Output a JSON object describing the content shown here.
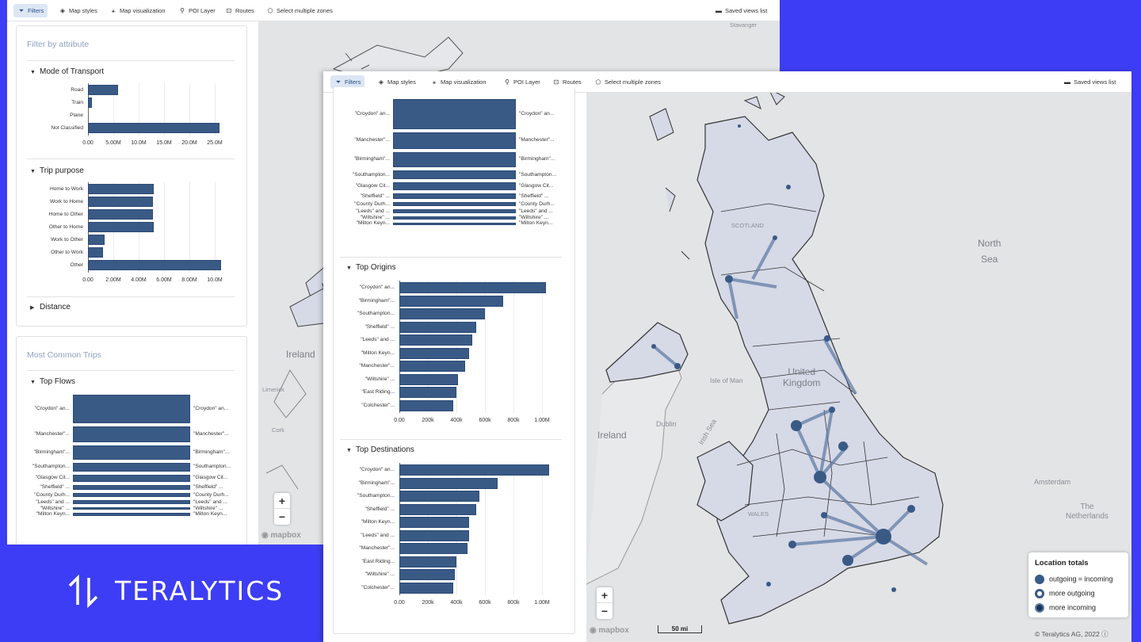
{
  "toolbar": {
    "filters": "Filters",
    "map_styles": "Map styles",
    "map_visualization": "Map visualization",
    "poi_layer": "POI Layer",
    "routes": "Routes",
    "select_multiple_zones": "Select multiple zones",
    "saved_views_list": "Saved views list"
  },
  "back_window": {
    "filter_title": "Filter by attribute",
    "mode_of_transport": {
      "title": "Mode of Transport",
      "categories": [
        "Road",
        "Train",
        "Plane",
        "Not Classified"
      ],
      "values": [
        6.0,
        0.8,
        0.0,
        26.0
      ],
      "ticks": [
        "0.00",
        "5.00M",
        "10.0M",
        "15.0M",
        "20.0M",
        "25.0M"
      ]
    },
    "trip_purpose": {
      "title": "Trip purpose",
      "categories": [
        "Home to Work",
        "Work to Home",
        "Home to Other",
        "Other to Home",
        "Work to Other",
        "Other to Work",
        "Other"
      ],
      "values": [
        5.2,
        5.1,
        5.1,
        5.2,
        1.3,
        1.2,
        10.5
      ],
      "ticks": [
        "0.00",
        "2.00M",
        "4.00M",
        "6.00M",
        "8.00M",
        "10.0M"
      ]
    },
    "distance": {
      "title": "Distance"
    },
    "common_trips_title": "Most Common Trips",
    "top_flows": {
      "title": "Top Flows",
      "origins": [
        "\"Croydon\" an...",
        "\"Manchester\"...",
        "\"Birmingham\"...",
        "\"Southampton...",
        "\"Glasgow Cit...",
        "\"Sheffield\" ...",
        "\"County Durh...",
        "\"Leeds\" and ...",
        "\"Wiltshire\" ...",
        "\"Milton Keyn..."
      ],
      "destinations": [
        "\"Croydon\" an...",
        "\"Manchester\"...",
        "\"Birmingham\"...",
        "\"Southampton...",
        "\"Glasgow Cit...",
        "\"Sheffield\" ...",
        "\"County Durh...",
        "\"Leeds\" and ...",
        "\"Wiltshire\" ...",
        "\"Milton Keyn..."
      ],
      "values": [
        100,
        55,
        50,
        30,
        26,
        18,
        14,
        12,
        10,
        9
      ]
    },
    "map_labels": {
      "ireland": "Ireland",
      "limerick": "Limerick",
      "cork": "Cork",
      "stavanger": "Stavanger"
    },
    "mapbox": "mapbox"
  },
  "front_window": {
    "top_flows": {
      "origins": [
        "\"Croydon\" an...",
        "\"Manchester\"...",
        "\"Birmingham\"...",
        "\"Southampton...",
        "\"Glasgow Cit...",
        "\"Sheffield\" ...",
        "\"County Durh...",
        "\"Leeds\" and ...",
        "\"Wiltshire\" ...",
        "\"Milton Keyn..."
      ],
      "destinations": [
        "\"Croydon\" an...",
        "\"Manchester\"...",
        "\"Birmingham\"...",
        "\"Southampton...",
        "\"Glasgow Cit...",
        "\"Sheffield\" ...",
        "\"County Durh...",
        "\"Leeds\" and ...",
        "\"Wiltshire\" ...",
        "\"Milton Keyn..."
      ],
      "values": [
        100,
        55,
        50,
        30,
        26,
        18,
        14,
        12,
        10,
        9
      ]
    },
    "top_origins": {
      "title": "Top Origins",
      "categories": [
        "\"Croydon\" an...",
        "\"Birmingham\"...",
        "\"Southampton...",
        "\"Sheffield\" ...",
        "\"Leeds\" and ...",
        "\"Milton Keyn...",
        "\"Manchester\"...",
        "\"Wiltshire\" ...",
        "\"East Riding...",
        "\"Colchester\"..."
      ],
      "values": [
        1030000,
        730000,
        600000,
        540000,
        510000,
        490000,
        460000,
        410000,
        400000,
        380000
      ],
      "ticks": [
        "0.00",
        "200k",
        "400k",
        "600k",
        "800k",
        "1.00M"
      ]
    },
    "top_destinations": {
      "title": "Top Destinations",
      "categories": [
        "\"Croydon\" an...",
        "\"Birmingham\"...",
        "\"Southampton...",
        "\"Sheffield\" ...",
        "\"Milton Keyn...",
        "\"Leeds\" and ...",
        "\"Manchester\"...",
        "\"East Riding...",
        "\"Wiltshire\" ...",
        "\"Colchester\"..."
      ],
      "values": [
        1050000,
        690000,
        560000,
        540000,
        490000,
        490000,
        480000,
        400000,
        390000,
        380000
      ],
      "ticks": [
        "0.00",
        "200k",
        "400k",
        "600k",
        "800k",
        "1.00M"
      ]
    },
    "map_labels": {
      "north_sea": "North\nSea",
      "ireland": "Ireland",
      "dublin": "Dublin",
      "irish_sea": "Irish Sea",
      "isle_of_man": "Isle of Man",
      "united_kingdom": "United\nKingdom",
      "scotland": "SCOTLAND",
      "wales": "WALES",
      "amsterdam": "Amsterdam",
      "the_netherlands": "The\nNetherlands"
    },
    "legend": {
      "title": "Location totals",
      "items": [
        "outgoing ≈ incoming",
        "more outgoing",
        "more incoming"
      ]
    },
    "scale": "50 mi",
    "copyright": "© Teralytics AG, 2022",
    "mapbox": "mapbox"
  },
  "brand": {
    "name": "TERALYTICS"
  },
  "colors": {
    "background": "#3d3df5",
    "bar": "#3a5a86",
    "map": "#e2e4e6",
    "zone_fill": "#d6d9e6"
  }
}
